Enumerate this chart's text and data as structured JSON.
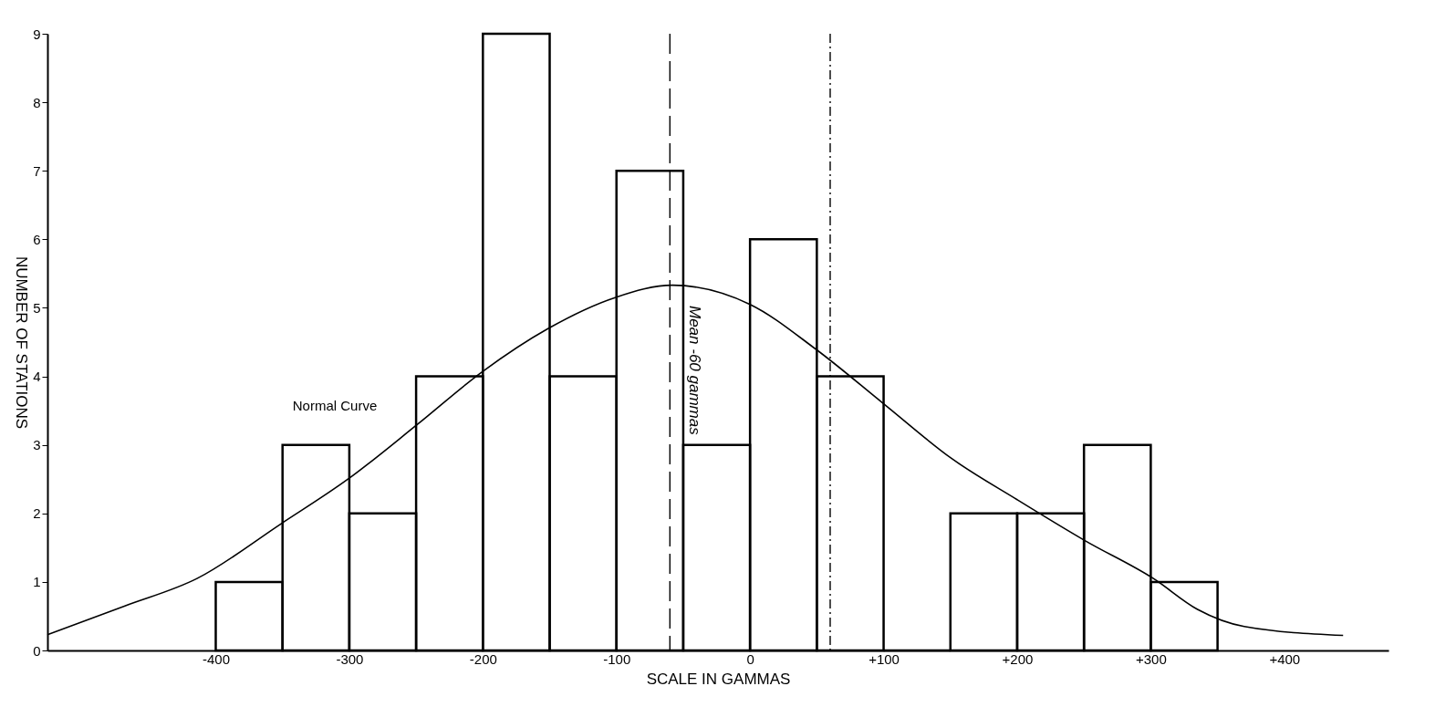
{
  "chart_data": {
    "type": "histogram",
    "xlabel": "SCALE IN GAMMAS",
    "ylabel": "NUMBER OF STATIONS",
    "bins": [
      -400,
      -350,
      -300,
      -250,
      -200,
      -150,
      -100,
      -50,
      0,
      50,
      100,
      150,
      200,
      250,
      300,
      350
    ],
    "values": [
      1,
      3,
      2,
      4,
      9,
      4,
      7,
      3,
      6,
      4,
      0,
      2,
      2,
      3,
      1
    ],
    "color": "#000000",
    "series": [
      {
        "type": "line",
        "color": "#000000",
        "x": [
          -526,
          -468,
          -414,
          -351,
          -301,
          -249,
          -201,
          -151,
          -101,
          -58,
          0,
          49,
          100,
          151,
          200,
          251,
          302,
          335,
          370,
          444
        ],
        "values": [
          0.23,
          0.65,
          1.05,
          1.85,
          2.5,
          3.3,
          4.06,
          4.7,
          5.15,
          5.33,
          5.05,
          4.4,
          3.6,
          2.8,
          2.2,
          1.6,
          1.05,
          0.6,
          0.35,
          0.22
        ]
      }
    ],
    "xlim": [
      -526,
      478
    ],
    "ylim": [
      0,
      9
    ],
    "xticks": [
      {
        "value": -400,
        "label": "-400"
      },
      {
        "value": -300,
        "label": "-300"
      },
      {
        "value": -200,
        "label": "-200"
      },
      {
        "value": -100,
        "label": "-100"
      },
      0,
      {
        "value": 100,
        "label": "+100"
      },
      {
        "value": 200,
        "label": "+200"
      },
      {
        "value": 300,
        "label": "+300"
      },
      {
        "value": 400,
        "label": "+400"
      }
    ],
    "yticks": [
      0,
      1,
      2,
      3,
      4,
      5,
      6,
      7,
      8,
      9
    ],
    "ref_lines": [
      {
        "axis": "x",
        "value": -60,
        "label": "Mean -60 gammas",
        "line_style": "dashed"
      },
      {
        "axis": "x",
        "value": 60,
        "line_style": "dotted"
      }
    ],
    "annotations": [
      {
        "text": "Normal Curve",
        "x": -269,
        "y": 3.0
      }
    ],
    "grid": false
  }
}
